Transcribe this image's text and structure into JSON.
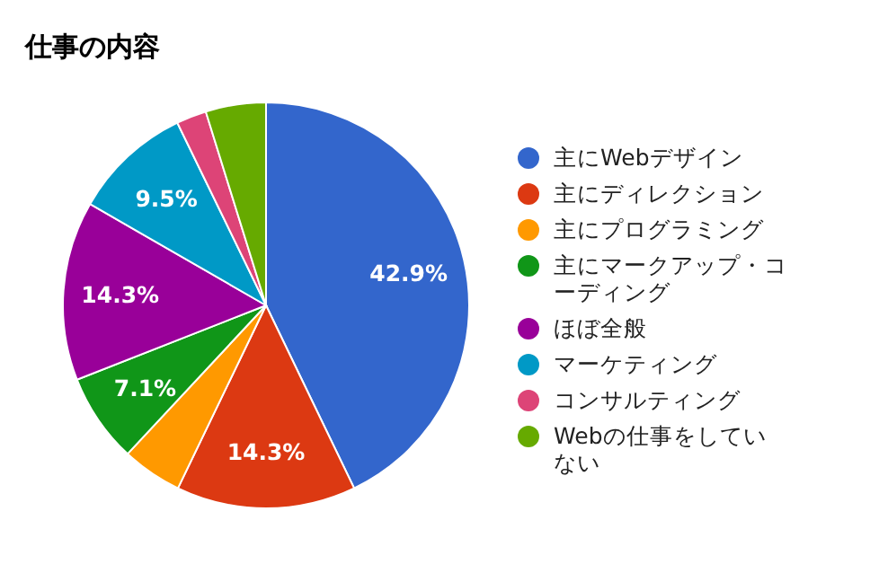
{
  "chart_data": {
    "type": "pie",
    "title": "仕事の内容",
    "categories": [
      "主にWebデザイン",
      "主にディレクション",
      "主にプログラミング",
      "主にマークアップ・コーディング",
      "ほぼ全般",
      "マーケティング",
      "コンサルティング",
      "Webの仕事をしていない"
    ],
    "values": [
      42.9,
      14.3,
      4.8,
      7.1,
      14.3,
      9.5,
      2.4,
      4.8
    ],
    "value_labels": [
      "42.9%",
      "14.3%",
      null,
      "7.1%",
      "14.3%",
      "9.5%",
      null,
      null
    ],
    "colors": [
      "#3366cc",
      "#dc3912",
      "#ff9900",
      "#109618",
      "#990099",
      "#0099c6",
      "#dd4477",
      "#66aa00"
    ],
    "legend": "right"
  }
}
